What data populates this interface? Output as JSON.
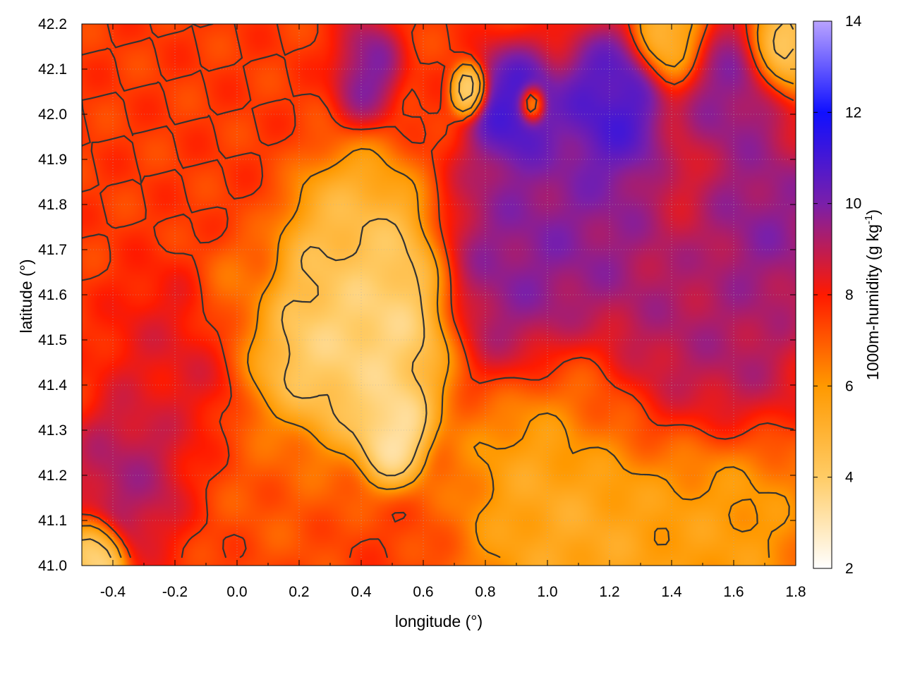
{
  "chart_data": {
    "type": "heatmap",
    "title": "",
    "xlabel": "longitude (°)",
    "ylabel": "latitude (°)",
    "colorbar_label": "1000m-humidity (g kg",
    "colorbar_label_sup": "-1",
    "colorbar_label_end": ")",
    "xlim": [
      -0.5,
      1.8
    ],
    "ylim": [
      41.0,
      42.2
    ],
    "clim": [
      2,
      14
    ],
    "x_ticks": [
      -0.4,
      -0.2,
      0.0,
      0.2,
      0.4,
      0.6,
      0.8,
      1.0,
      1.2,
      1.4,
      1.6,
      1.8
    ],
    "x_tick_labels": [
      "-0.4",
      "-0.2",
      "0.0",
      "0.2",
      "0.4",
      "0.6",
      "0.8",
      "1.0",
      "1.2",
      "1.4",
      "1.6",
      "1.8"
    ],
    "y_ticks": [
      41.0,
      41.1,
      41.2,
      41.3,
      41.4,
      41.5,
      41.6,
      41.7,
      41.8,
      41.9,
      42.0,
      42.1,
      42.2
    ],
    "y_tick_labels": [
      "41.0",
      "41.1",
      "41.2",
      "41.3",
      "41.4",
      "41.5",
      "41.6",
      "41.7",
      "41.8",
      "41.9",
      "42.0",
      "42.1",
      "42.2"
    ],
    "colorbar_ticks": [
      2,
      4,
      6,
      8,
      10,
      12,
      14
    ],
    "colorbar_tick_labels": [
      "2",
      "4",
      "6",
      "8",
      "10",
      "12",
      "14"
    ],
    "colormap": [
      {
        "value": 2,
        "color": "#ffffff"
      },
      {
        "value": 4,
        "color": "#ffcc66"
      },
      {
        "value": 6,
        "color": "#ff9900"
      },
      {
        "value": 8,
        "color": "#ff1a00"
      },
      {
        "value": 10,
        "color": "#7a1faa"
      },
      {
        "value": 12,
        "color": "#1010ff"
      },
      {
        "value": 14,
        "color": "#b9a3ff"
      }
    ],
    "contour_color": "#333333",
    "grid": true,
    "field_blobs": [
      {
        "x": -0.35,
        "y": 41.2,
        "v": 9.5,
        "s": 0.12
      },
      {
        "x": -0.2,
        "y": 41.45,
        "v": 8.5,
        "s": 0.15
      },
      {
        "x": 0.15,
        "y": 41.2,
        "v": 7.0,
        "s": 0.15
      },
      {
        "x": 0.45,
        "y": 41.55,
        "v": 3.0,
        "s": 0.18
      },
      {
        "x": 0.25,
        "y": 41.45,
        "v": 3.5,
        "s": 0.15
      },
      {
        "x": 0.5,
        "y": 41.3,
        "v": 2.5,
        "s": 0.08
      },
      {
        "x": 0.35,
        "y": 41.7,
        "v": 4.5,
        "s": 0.15
      },
      {
        "x": 0.9,
        "y": 41.65,
        "v": 10.0,
        "s": 0.18
      },
      {
        "x": 1.1,
        "y": 41.75,
        "v": 10.0,
        "s": 0.2
      },
      {
        "x": 1.35,
        "y": 41.5,
        "v": 9.5,
        "s": 0.2
      },
      {
        "x": 1.6,
        "y": 41.45,
        "v": 9.5,
        "s": 0.15
      },
      {
        "x": 1.7,
        "y": 41.75,
        "v": 10.0,
        "s": 0.15
      },
      {
        "x": 1.2,
        "y": 42.0,
        "v": 11.5,
        "s": 0.12
      },
      {
        "x": 0.9,
        "y": 42.0,
        "v": 11.5,
        "s": 0.1
      },
      {
        "x": 0.4,
        "y": 42.1,
        "v": 10.5,
        "s": 0.08
      },
      {
        "x": 1.6,
        "y": 42.05,
        "v": 10.0,
        "s": 0.12
      },
      {
        "x": 0.75,
        "y": 42.05,
        "v": 3.0,
        "s": 0.04
      },
      {
        "x": 0.95,
        "y": 42.02,
        "v": 3.0,
        "s": 0.03
      },
      {
        "x": 1.75,
        "y": 42.15,
        "v": 3.5,
        "s": 0.08
      },
      {
        "x": 1.4,
        "y": 42.18,
        "v": 4.5,
        "s": 0.08
      },
      {
        "x": 1.1,
        "y": 41.15,
        "v": 5.0,
        "s": 0.25
      },
      {
        "x": 1.55,
        "y": 41.1,
        "v": 5.5,
        "s": 0.2
      },
      {
        "x": 1.15,
        "y": 41.35,
        "v": 7.0,
        "s": 0.12
      },
      {
        "x": -0.45,
        "y": 41.02,
        "v": 3.0,
        "s": 0.06
      },
      {
        "x": -0.1,
        "y": 41.95,
        "v": 7.5,
        "s": 0.2
      },
      {
        "x": 0.2,
        "y": 42.15,
        "v": 7.5,
        "s": 0.15
      },
      {
        "x": 0.0,
        "y": 41.6,
        "v": 6.5,
        "s": 0.1
      }
    ],
    "field_base": 7.5
  }
}
